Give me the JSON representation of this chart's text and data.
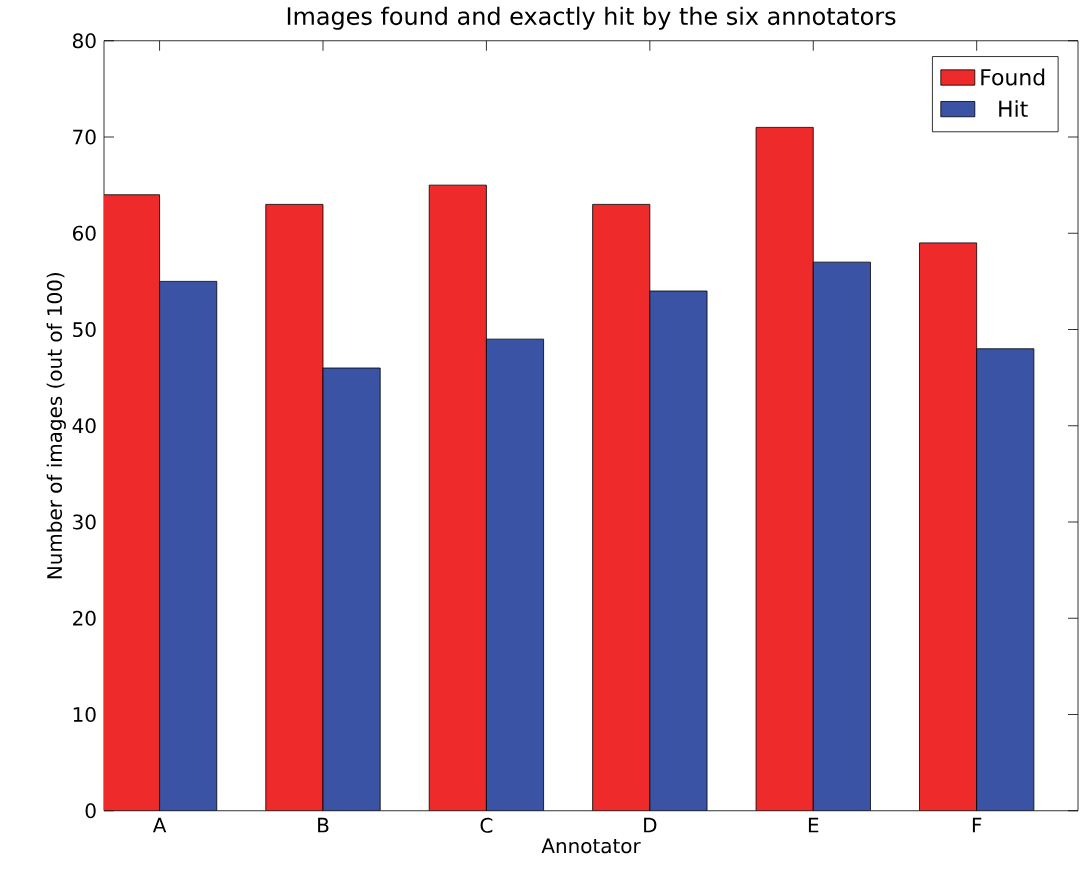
{
  "chart_data": {
    "type": "bar",
    "title": "Images found and exactly hit by the six annotators",
    "xlabel": "Annotator",
    "ylabel": "Number of images (out of 100)",
    "categories": [
      "A",
      "B",
      "C",
      "D",
      "E",
      "F"
    ],
    "series": [
      {
        "name": "Found",
        "color": "#ee2a2a",
        "values": [
          64,
          63,
          65,
          63,
          71,
          59
        ]
      },
      {
        "name": "Hit",
        "color": "#3b53a4",
        "values": [
          55,
          46,
          49,
          54,
          57,
          48
        ]
      }
    ],
    "ylim": [
      0,
      80
    ],
    "yticks": [
      0,
      10,
      20,
      30,
      40,
      50,
      60,
      70,
      80
    ],
    "grid": false,
    "legend": "top right"
  }
}
